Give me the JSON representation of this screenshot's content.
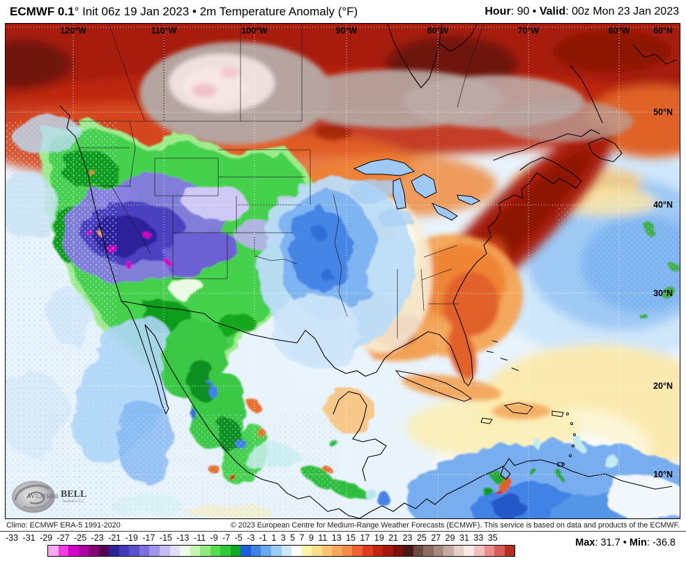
{
  "header": {
    "left_bold": "ECMWF 0.1",
    "left_rest": "° Init 06z 19 Jan 2023 • 2m Temperature Anomaly (°F)",
    "hour_label": "Hour",
    "hour_rest": ": 90 • ",
    "valid_label": "Valid",
    "valid_rest": ": 00z Mon 23 Jan 2023"
  },
  "map": {
    "lon_labels": [
      "120°W",
      "110°W",
      "100°W",
      "90°W",
      "80°W",
      "70°W",
      "60°W"
    ],
    "lat_labels": [
      "60°N",
      "50°N",
      "40°N",
      "30°N",
      "20°N",
      "10°N"
    ],
    "logo": {
      "brand_weather": "Weather",
      "brand_bell": "BELL",
      "subtitle": "Analytics LLC"
    }
  },
  "footer": {
    "climo": "Climo: ECMWF ERA-5 1991-2020",
    "copyright": "© 2023 European Centre for Medium-Range Weather Forecasts (ECMWF). This service is based on data and products of the ECMWF."
  },
  "colorbar": {
    "tick_labels": [
      "-33",
      "-31",
      "-29",
      "-27",
      "-25",
      "-23",
      "-21",
      "-19",
      "-17",
      "-15",
      "-13",
      "-11",
      "-9",
      "-7",
      "-5",
      "-3",
      "-1",
      "1",
      "3",
      "5",
      "7",
      "9",
      "11",
      "13",
      "15",
      "17",
      "19",
      "21",
      "23",
      "25",
      "27",
      "29",
      "31",
      "33",
      "35"
    ],
    "colors": [
      "#f9a8f0",
      "#ee3ce2",
      "#d402c6",
      "#ae02a0",
      "#850179",
      "#570150",
      "#2c2398",
      "#4238b8",
      "#5b50cc",
      "#7b70dc",
      "#9f96e9",
      "#c4bdf4",
      "#e2defa",
      "#edfbe7",
      "#c5f4b3",
      "#90ea80",
      "#57dc51",
      "#2dcb36",
      "#12a81f",
      "#1c5ed6",
      "#3f82e6",
      "#69a9f0",
      "#9ccbf7",
      "#cde7fb",
      "#ffffff",
      "#fdf3a9",
      "#fcdf87",
      "#fbc671",
      "#f9a95c",
      "#f68b47",
      "#ee6232",
      "#dd3c1e",
      "#c22413",
      "#a5170b",
      "#7c120a",
      "#4a1a12",
      "#6b4a42",
      "#8a6a61",
      "#a8887f",
      "#c7aba3",
      "#e5cfc9",
      "#f7e9e6",
      "#f3c0bd",
      "#ea8e8b",
      "#d95b58",
      "#b52f22"
    ],
    "max_label": "Max",
    "max_rest": ": 31.7 • ",
    "min_label": "Min",
    "min_rest": ": -36.8"
  }
}
